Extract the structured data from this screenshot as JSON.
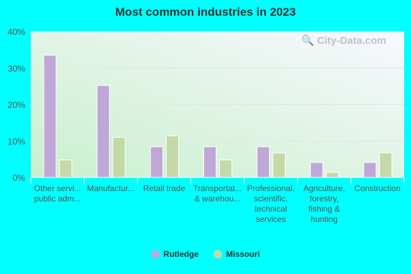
{
  "chart_data": {
    "type": "bar",
    "title": "Most common industries in 2023",
    "categories": [
      [
        "Other servi...",
        "public adm..."
      ],
      [
        "Manufactur..."
      ],
      [
        "Retail trade"
      ],
      [
        "Transportat...",
        "& warehou..."
      ],
      [
        "Professional,",
        "scientific,",
        "technical",
        "services"
      ],
      [
        "Agriculture,",
        "forestry,",
        "fishing &",
        "hunting"
      ],
      [
        "Construction"
      ]
    ],
    "series": [
      {
        "name": "Rutledge",
        "color": "#bfa8d8",
        "values": [
          33.5,
          25.2,
          8.4,
          8.4,
          8.4,
          4.1,
          4.1
        ]
      },
      {
        "name": "Missouri",
        "color": "#c5d9a8",
        "values": [
          4.8,
          11.0,
          11.4,
          4.8,
          6.7,
          1.4,
          6.7
        ]
      }
    ],
    "ylim": [
      0,
      40
    ],
    "yticks": [
      "0%",
      "10%",
      "20%",
      "30%",
      "40%"
    ],
    "grid": true,
    "legend": "bottom",
    "watermark": "City-Data.com"
  }
}
